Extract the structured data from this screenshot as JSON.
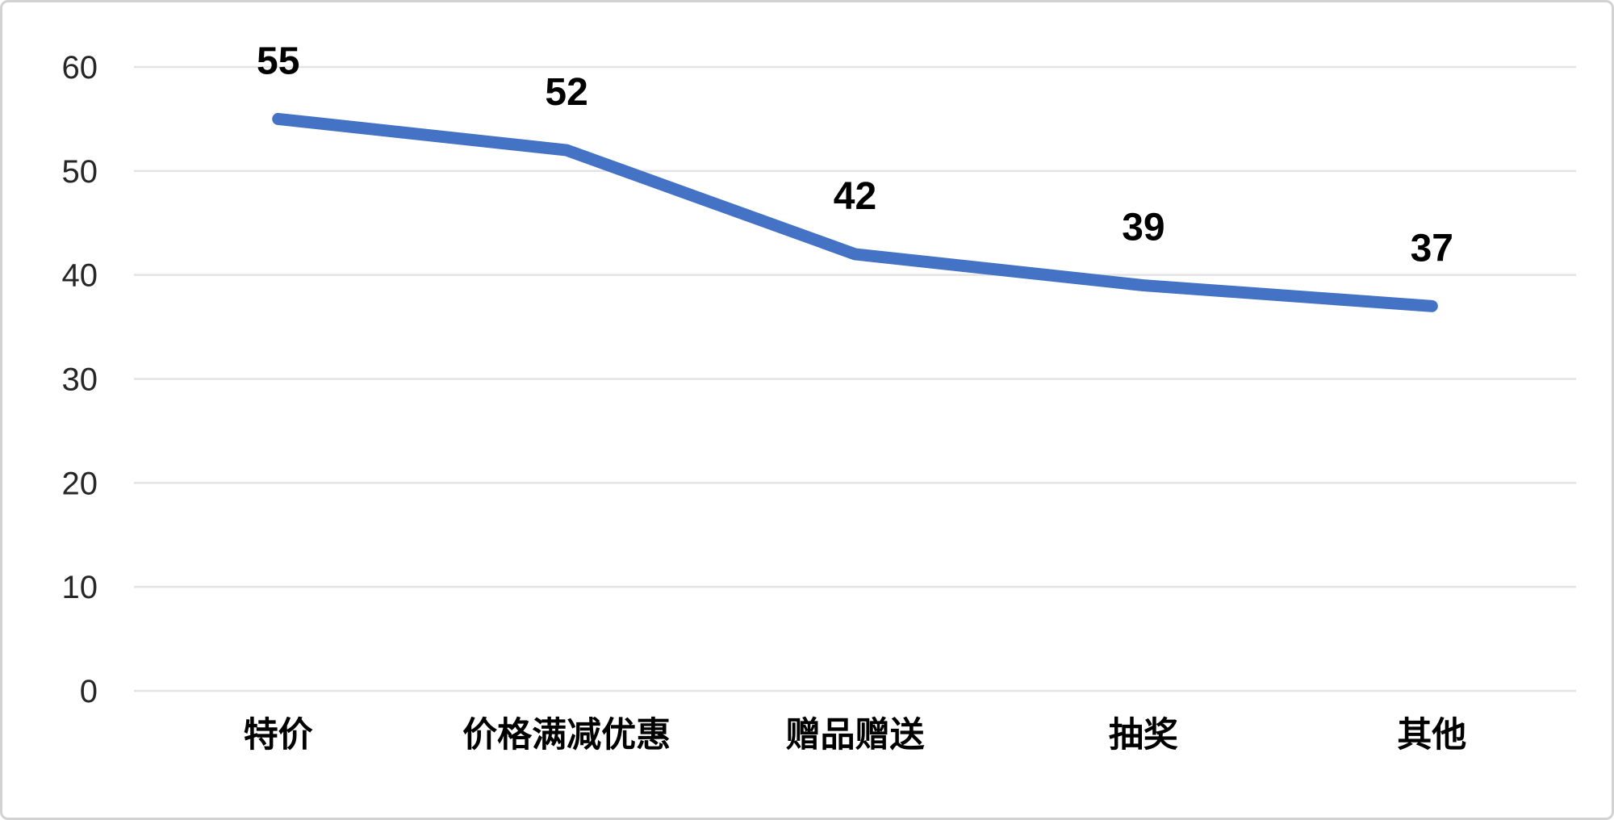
{
  "chart_data": {
    "type": "line",
    "title": "",
    "xlabel": "",
    "ylabel": "",
    "categories": [
      "特价",
      "价格满减优惠",
      "赠品赠送",
      "抽奖",
      "其他"
    ],
    "series": [
      {
        "name": "",
        "values": [
          55,
          52,
          42,
          39,
          37
        ]
      }
    ],
    "data_labels": [
      55,
      52,
      42,
      39,
      37
    ],
    "ylim": [
      0,
      60
    ],
    "yticks": [
      0,
      10,
      20,
      30,
      40,
      50,
      60
    ],
    "grid": "horizontal",
    "legend": "none",
    "colors": {
      "line": "#4472C4",
      "gridline": "#e3e3e3",
      "tick_text": "#262626",
      "label_text": "#000000",
      "frame_border": "#d2d2d2",
      "background": "#ffffff"
    }
  }
}
